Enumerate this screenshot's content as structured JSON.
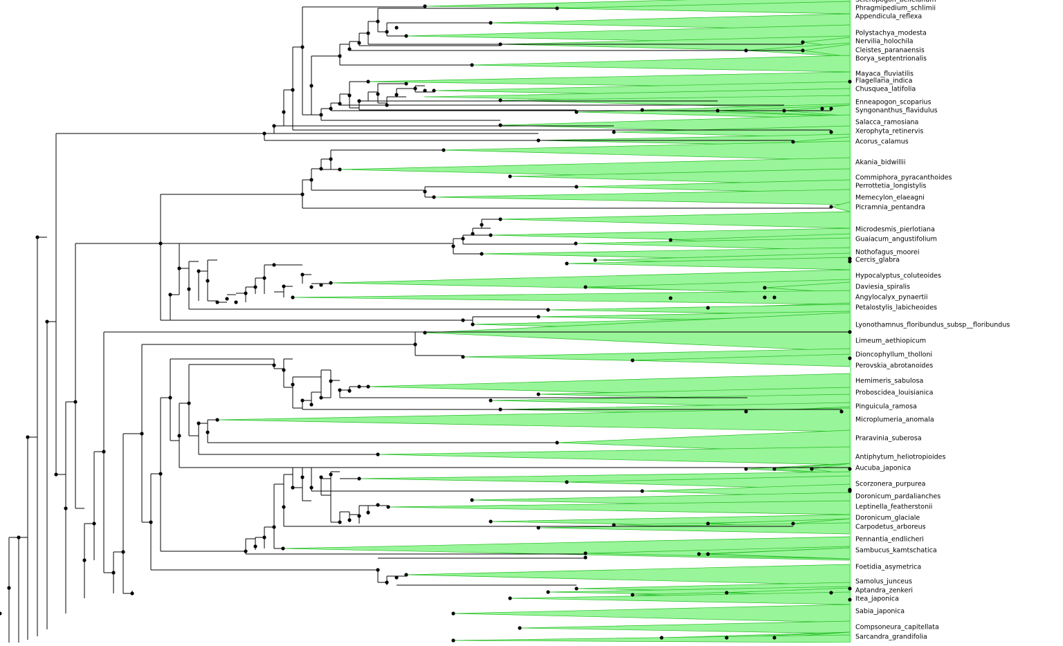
{
  "taxa": [
    "Scleropogon_belleianum",
    "Phragmipedium_schlimii",
    "Appendicula_reflexa",
    "Polystachya_modesta",
    "Nervilia_holochila",
    "Cleistes_paranaensis",
    "Borya_septentrionalis",
    "Mayaca_fluviatilis",
    "Flagellaria_indica",
    "Chusquea_latifolia",
    "Enneapogon_scoparius",
    "Syngonanthus_flavidulus",
    "Salacca_ramosiana",
    "Xerophyta_retinervis",
    "Acorus_calamus",
    "Akania_bidwillii",
    "Commiphora_pyracanthoides",
    "Perrottetia_longistylis",
    "Memecylon_elaeagni",
    "Picramnia_pentandra",
    "Microdesmis_pierlotiana",
    "Guaiacum_angustifolium",
    "Nothofagus_moorei",
    "Cercis_glabra",
    "Hypocalyptus_coluteoides",
    "Daviesia_spiralis",
    "Angylocalyx_pynaertii",
    "Petalostylis_labicheoides",
    "Lyonothamnus_floribundus_subsp__floribundus",
    "Limeum_aethiopicum",
    "Dioncophyllum_tholloni",
    "Perovskia_abrotanoides",
    "Hemimeris_sabulosa",
    "Proboscidea_louisianica",
    "Pinguicula_ramosa",
    "Microplumeria_anomala",
    "Praravinia_suberosa",
    "Antiphytum_heliotropioides",
    "Aucuba_japonica",
    "Scorzonera_purpurea",
    "Doronicum_pardalianches",
    "Leptinella_featherstonii",
    "Doronicum_glaciale",
    "Carpodetus_arboreus",
    "Pennantia_endlicheri",
    "Sambucus_kamtschatica",
    "Foetidia_asymetrica",
    "Samolus_junceus",
    "Aptandra_zenkeri",
    "Itea_japonica",
    "Sabia_japonica",
    "Compsoneura_capitellata",
    "Sarcandra_grandifolia"
  ],
  "colors": {
    "wedge_fill": "#99f599",
    "wedge_edge": "#22bb22",
    "branch": "#000000",
    "node": "#000000"
  }
}
